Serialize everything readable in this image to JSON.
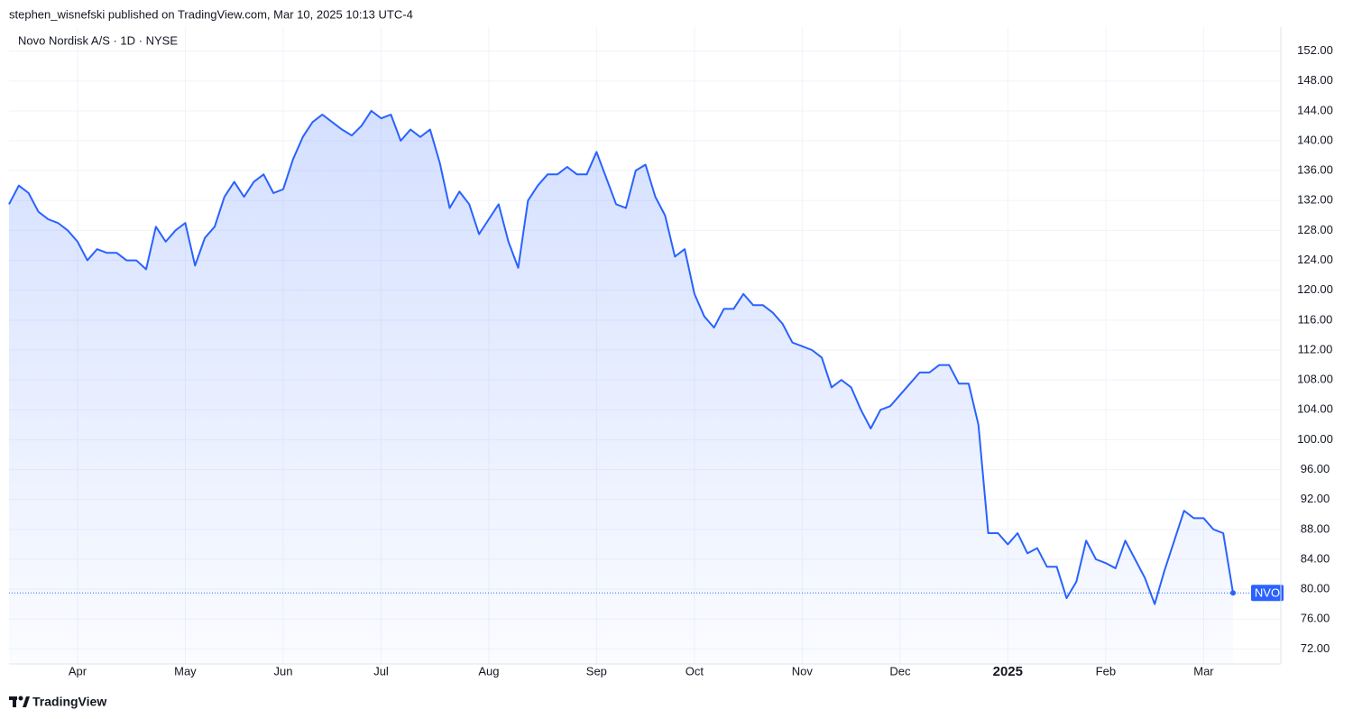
{
  "header": {
    "text": "stephen_wisnefski published on TradingView.com, Mar 10, 2025 10:13 UTC-4"
  },
  "footer": {
    "brand": "TradingView"
  },
  "chart_data": {
    "type": "area",
    "title": "Novo Nordisk A/S · 1D · NYSE",
    "categories": [
      null,
      null,
      null,
      null,
      null,
      null,
      null,
      "Apr",
      null,
      null,
      null,
      null,
      null,
      null,
      null,
      null,
      null,
      null,
      "May",
      null,
      null,
      null,
      null,
      null,
      null,
      null,
      null,
      null,
      "Jun",
      null,
      null,
      null,
      null,
      null,
      null,
      null,
      null,
      null,
      "Jul",
      null,
      null,
      null,
      null,
      null,
      null,
      null,
      null,
      null,
      null,
      "Aug",
      null,
      null,
      null,
      null,
      null,
      null,
      null,
      null,
      null,
      null,
      "Sep",
      null,
      null,
      null,
      null,
      null,
      null,
      null,
      null,
      null,
      "Oct",
      null,
      null,
      null,
      null,
      null,
      null,
      null,
      null,
      null,
      null,
      "Nov",
      null,
      null,
      null,
      null,
      null,
      null,
      null,
      null,
      null,
      "Dec",
      null,
      null,
      null,
      null,
      null,
      null,
      null,
      null,
      null,
      null,
      "2025",
      null,
      null,
      null,
      null,
      null,
      null,
      null,
      null,
      null,
      "Feb",
      null,
      null,
      null,
      null,
      null,
      null,
      null,
      null,
      null,
      "Mar",
      null,
      null,
      null
    ],
    "series": [
      {
        "name": "NVO",
        "color": "#2962ff",
        "values": [
          131.5,
          134,
          133,
          130.5,
          129.5,
          129,
          128,
          126.5,
          124,
          125.5,
          125,
          125,
          124,
          124,
          122.8,
          128.5,
          126.5,
          128,
          129,
          123.3,
          127,
          128.5,
          132.5,
          134.5,
          132.5,
          134.5,
          135.5,
          133,
          133.5,
          137.5,
          140.5,
          142.5,
          143.5,
          142.5,
          141.5,
          140.7,
          142,
          144,
          143,
          143.5,
          140,
          141.5,
          140.5,
          141.5,
          137,
          131,
          133.2,
          131.5,
          127.5,
          129.5,
          131.5,
          126.5,
          123,
          132,
          134,
          135.5,
          135.5,
          136.5,
          135.5,
          135.5,
          138.5,
          135,
          131.5,
          131,
          136,
          136.8,
          132.5,
          130,
          124.5,
          125.5,
          119.5,
          116.5,
          115,
          117.5,
          117.5,
          119.5,
          118,
          118,
          117,
          115.5,
          113,
          112.5,
          112,
          111,
          107,
          108,
          107,
          104,
          101.5,
          104,
          104.5,
          106,
          107.5,
          109,
          109,
          110,
          110,
          107.5,
          107.5,
          102,
          87.5,
          87.5,
          86,
          87.5,
          84.8,
          85.5,
          83,
          83,
          78.8,
          81,
          86.5,
          84,
          83.5,
          82.8,
          86.5,
          84,
          81.5,
          78,
          82.5,
          86.5,
          90.5,
          89.5,
          89.5,
          88,
          87.5,
          79.5
        ]
      }
    ],
    "ylim": [
      70,
      154
    ],
    "yticks": [
      {
        "value": 72,
        "label": "72.00"
      },
      {
        "value": 76,
        "label": "76.00"
      },
      {
        "value": 80,
        "label": "80.00"
      },
      {
        "value": 84,
        "label": "84.00"
      },
      {
        "value": 88,
        "label": "88.00"
      },
      {
        "value": 92,
        "label": "92.00"
      },
      {
        "value": 96,
        "label": "96.00"
      },
      {
        "value": 100,
        "label": "100.00"
      },
      {
        "value": 104,
        "label": "104.00"
      },
      {
        "value": 108,
        "label": "108.00"
      },
      {
        "value": 112,
        "label": "112.00"
      },
      {
        "value": 116,
        "label": "116.00"
      },
      {
        "value": 120,
        "label": "120.00"
      },
      {
        "value": 124,
        "label": "124.00"
      },
      {
        "value": 128,
        "label": "128.00"
      },
      {
        "value": 132,
        "label": "132.00"
      },
      {
        "value": 136,
        "label": "136.00"
      },
      {
        "value": 140,
        "label": "140.00"
      },
      {
        "value": 144,
        "label": "144.00"
      },
      {
        "value": 148,
        "label": "148.00"
      },
      {
        "value": 152,
        "label": "152.00"
      }
    ],
    "grid": true
  }
}
